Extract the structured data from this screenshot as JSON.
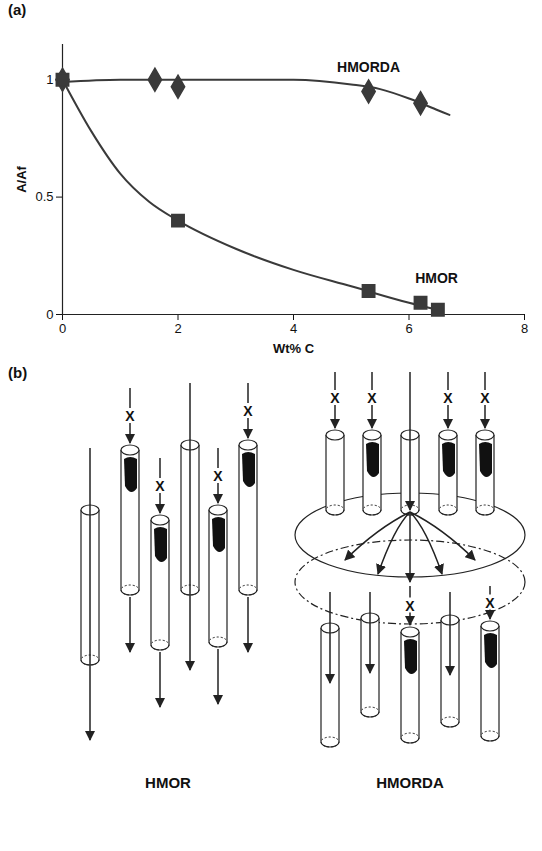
{
  "chart_data": {
    "type": "scatter",
    "title": "(a)",
    "x_label": "Wt% C",
    "y_label": "A/Af",
    "xlim": [
      0,
      8
    ],
    "xticks": [
      0,
      2,
      4,
      6,
      8
    ],
    "ylim": [
      0,
      1.15
    ],
    "yticks": [
      0,
      0.5,
      1
    ],
    "series": [
      {
        "name": "HMORDA",
        "color": "#3a3a3a",
        "marker": "diamond",
        "line_style": "solid",
        "x": [
          0,
          1.6,
          2,
          5.3,
          6.2
        ],
        "values": [
          1,
          1,
          0.97,
          0.95,
          0.9
        ],
        "fit_x": [
          0,
          1,
          2,
          3,
          4,
          5,
          5.5,
          6,
          6.5,
          6.7
        ],
        "fit_values": [
          0.99,
          1.0,
          1.0,
          1.0,
          1.0,
          0.98,
          0.96,
          0.92,
          0.87,
          0.85
        ]
      },
      {
        "name": "HMOR",
        "color": "#3a3a3a",
        "marker": "square",
        "line_style": "solid",
        "x": [
          0,
          2,
          5.3,
          6.2,
          6.5
        ],
        "values": [
          1,
          0.4,
          0.1,
          0.05,
          0.02
        ],
        "fit_x": [
          0,
          0.5,
          1,
          1.5,
          2,
          3,
          4,
          5,
          6,
          6.5
        ],
        "fit_values": [
          1,
          0.78,
          0.6,
          0.48,
          0.4,
          0.28,
          0.19,
          0.12,
          0.05,
          0.02
        ]
      }
    ]
  },
  "diagram": {
    "label": "(b)",
    "blocked_mark": "X",
    "panels": [
      "HMOR",
      "HMORDA"
    ]
  }
}
